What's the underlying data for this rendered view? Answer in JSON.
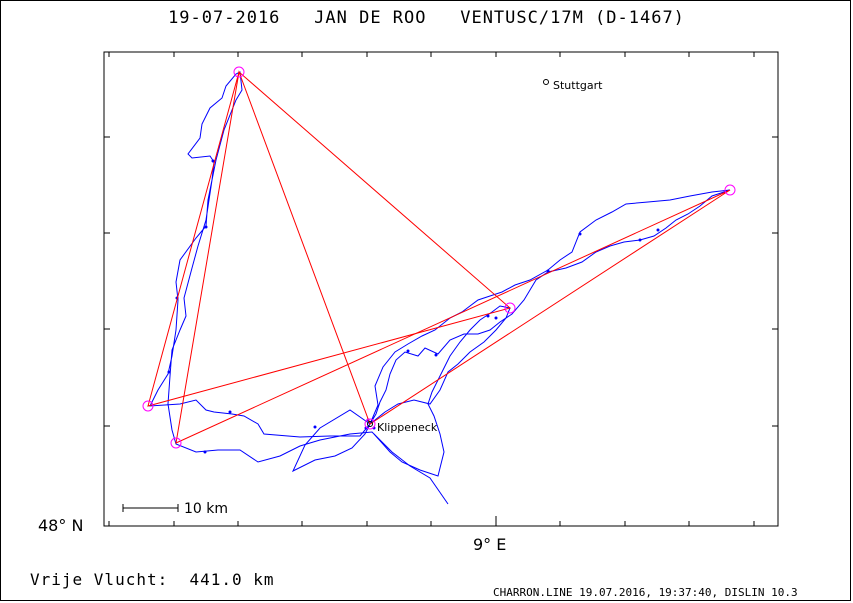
{
  "header": {
    "date": "19-07-2016",
    "pilot": "JAN DE ROO",
    "glider": "VENTUSC/17M (D-1467)"
  },
  "axes": {
    "lat_label": "48° N",
    "lon_label": "9° E"
  },
  "scale": {
    "label": "10 km"
  },
  "places": [
    {
      "name": "Stuttgart",
      "kind": "town"
    },
    {
      "name": "Klippeneck",
      "kind": "start"
    }
  ],
  "footer": {
    "distance": "Vrije Vlucht:  441.0 km",
    "credit": "CHARRON.LINE 19.07.2016, 19:37:40, DISLIN 10.3"
  },
  "colors": {
    "track": "#0000ff",
    "task": "#ff0000",
    "turnpoint": "#ff00ff",
    "frame": "#000000"
  }
}
